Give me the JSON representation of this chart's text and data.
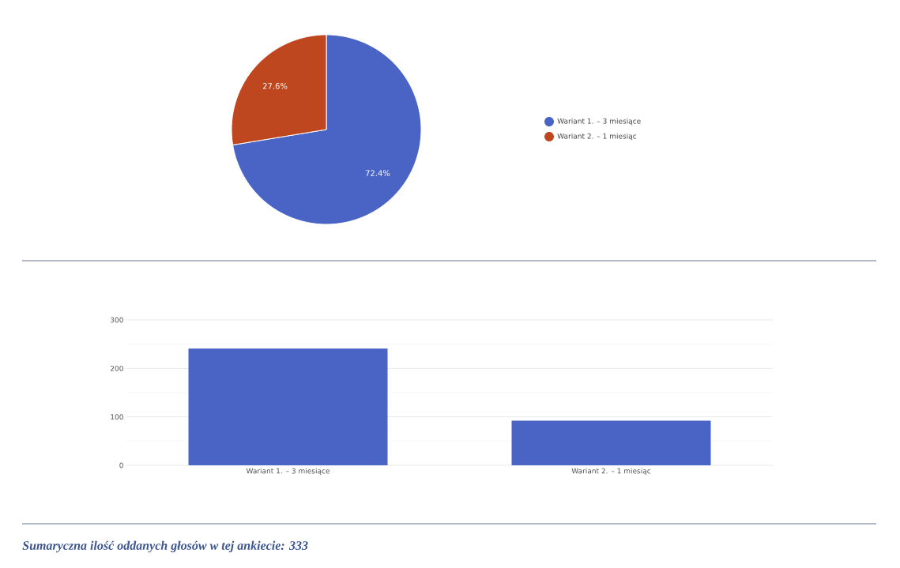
{
  "chart_data": [
    {
      "type": "pie",
      "categories": [
        "Wariant 1. – 3 miesiące",
        "Wariant 2. – 1 miesiąc"
      ],
      "values": [
        72.4,
        27.6
      ],
      "colors": [
        "#4a64c5",
        "#bf4720"
      ],
      "value_labels": [
        "72.4%",
        "27.6%"
      ],
      "legend": "right"
    },
    {
      "type": "bar",
      "categories": [
        "Wariant 1. – 3 miesiące",
        "Wariant 2. – 1 miesiąc"
      ],
      "values": [
        241,
        92
      ],
      "color": "#4a64c5",
      "ylim": [
        0,
        300
      ],
      "yticks": [
        0,
        100,
        200,
        300
      ],
      "grid": "y",
      "annotations": [
        "Sumaryczna ilość oddanych głosów w tej ankiecie: 333"
      ]
    }
  ]
}
